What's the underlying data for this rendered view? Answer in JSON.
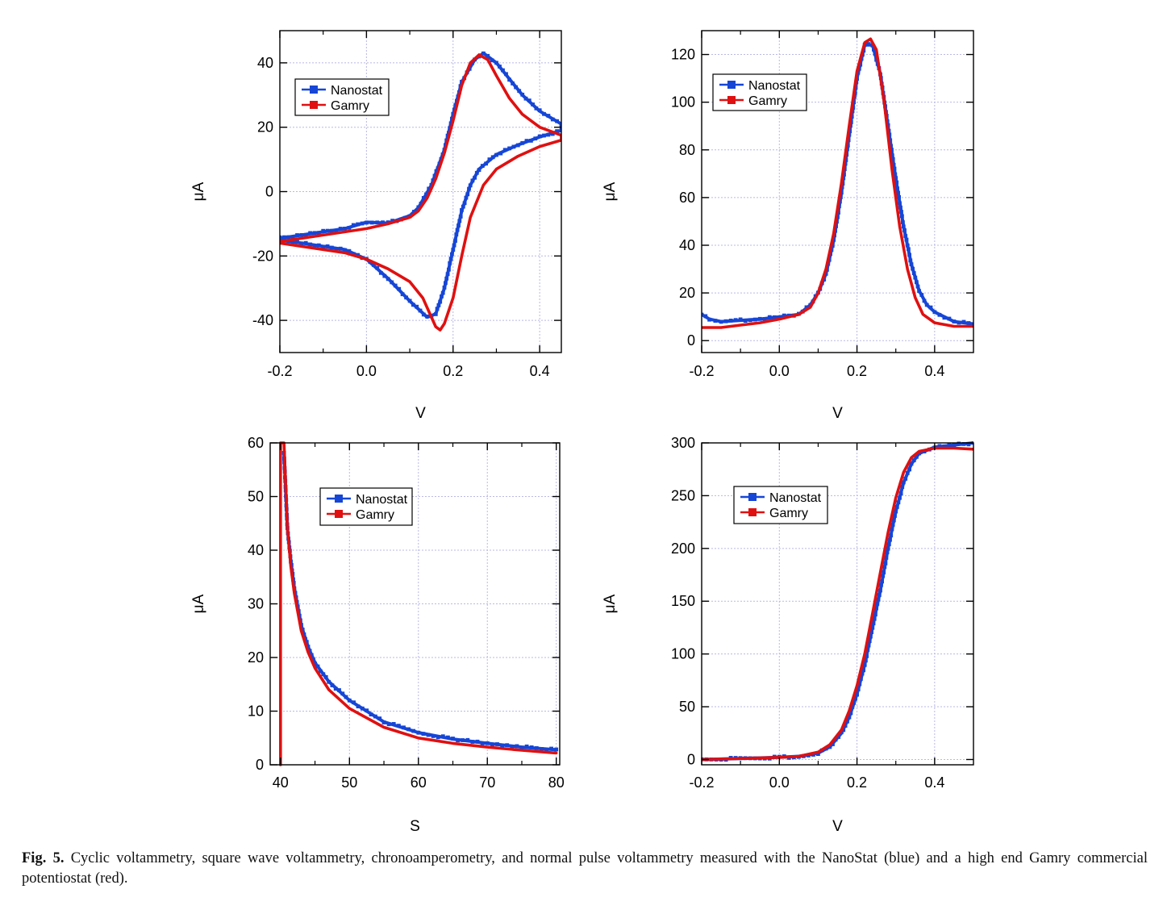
{
  "colors": {
    "nanostat": "#1646d6",
    "gamry": "#e01010",
    "grid": "#b8b8e6",
    "axis": "#000000"
  },
  "figure": {
    "label": "Fig. 5.",
    "caption": "Cyclic voltammetry, square wave voltammetry, chronoamperometry, and normal pulse voltammetry measured with the NanoStat (blue) and a high end Gamry commercial potentiostat (red)."
  },
  "chart_data": [
    {
      "id": "cv",
      "type": "line",
      "xlabel": "V",
      "ylabel": "μA",
      "xlim": [
        -0.2,
        0.45
      ],
      "ylim": [
        -50,
        50
      ],
      "xticks": [
        -0.2,
        0.0,
        0.2,
        0.4
      ],
      "xticklabels": [
        "-0.2",
        "0.0",
        "0.2",
        "0.4"
      ],
      "yticks": [
        -40,
        -20,
        0,
        20,
        40
      ],
      "yticklabels": [
        "-40",
        "-20",
        "0",
        "20",
        "40"
      ],
      "legend": [
        "Nanostat",
        "Gamry"
      ],
      "legend_position": "upper-left",
      "series": [
        {
          "name": "Nanostat",
          "x": [
            -0.2,
            -0.15,
            -0.1,
            -0.05,
            0.0,
            0.05,
            0.1,
            0.12,
            0.15,
            0.18,
            0.2,
            0.22,
            0.25,
            0.27,
            0.3,
            0.33,
            0.36,
            0.4,
            0.45,
            0.45,
            0.4,
            0.35,
            0.3,
            0.26,
            0.24,
            0.22,
            0.2,
            0.18,
            0.16,
            0.14,
            0.1,
            0.05,
            0.0,
            -0.05,
            -0.1,
            -0.15,
            -0.2
          ],
          "y": [
            -14.5,
            -13.5,
            -12.5,
            -11.5,
            -9.5,
            -9.8,
            -7.5,
            -5,
            2,
            13,
            24,
            34,
            41,
            43,
            40,
            35,
            30,
            25,
            21,
            19,
            17,
            14.5,
            11.5,
            7,
            2,
            -6,
            -18,
            -30,
            -38,
            -39,
            -34,
            -27,
            -21,
            -18,
            -17,
            -16,
            -15
          ]
        },
        {
          "name": "Gamry",
          "x": [
            -0.2,
            -0.15,
            -0.1,
            -0.05,
            0.0,
            0.05,
            0.1,
            0.12,
            0.14,
            0.16,
            0.18,
            0.2,
            0.22,
            0.24,
            0.26,
            0.28,
            0.3,
            0.33,
            0.36,
            0.4,
            0.45,
            0.45,
            0.4,
            0.35,
            0.3,
            0.27,
            0.24,
            0.22,
            0.2,
            0.18,
            0.17,
            0.16,
            0.15,
            0.13,
            0.1,
            0.05,
            0.0,
            -0.05,
            -0.1,
            -0.15,
            -0.2
          ],
          "y": [
            -15.5,
            -14.5,
            -13.5,
            -12.5,
            -11.5,
            -10,
            -8,
            -6,
            -2,
            4,
            12,
            22,
            33,
            40,
            42.5,
            41,
            36,
            29,
            24,
            20,
            17.5,
            16,
            14,
            11,
            7,
            2,
            -8,
            -20,
            -33,
            -41,
            -43,
            -42,
            -39,
            -33,
            -28,
            -24,
            -21,
            -19,
            -18,
            -17,
            -16
          ]
        }
      ]
    },
    {
      "id": "swv",
      "type": "line",
      "xlabel": "V",
      "ylabel": "μA",
      "xlim": [
        -0.2,
        0.5
      ],
      "ylim": [
        -5,
        130
      ],
      "xticks": [
        -0.2,
        0.0,
        0.2,
        0.4
      ],
      "xticklabels": [
        "-0.2",
        "0.0",
        "0.2",
        "0.4"
      ],
      "yticks": [
        0,
        20,
        40,
        60,
        80,
        100,
        120
      ],
      "yticklabels": [
        "0",
        "20",
        "40",
        "60",
        "80",
        "100",
        "120"
      ],
      "legend": [
        "Nanostat",
        "Gamry"
      ],
      "legend_position": "upper-left",
      "series": [
        {
          "name": "Nanostat",
          "x": [
            -0.2,
            -0.18,
            -0.15,
            -0.1,
            -0.05,
            0.0,
            0.05,
            0.08,
            0.1,
            0.12,
            0.14,
            0.16,
            0.18,
            0.2,
            0.22,
            0.24,
            0.26,
            0.28,
            0.3,
            0.32,
            0.34,
            0.36,
            0.38,
            0.4,
            0.45,
            0.5
          ],
          "y": [
            11,
            9,
            8,
            8.5,
            9,
            10,
            11,
            15,
            20,
            28,
            42,
            62,
            86,
            110,
            124,
            124,
            112,
            90,
            68,
            48,
            32,
            21,
            15,
            12,
            8,
            7
          ]
        },
        {
          "name": "Gamry",
          "x": [
            -0.2,
            -0.15,
            -0.1,
            -0.05,
            0.0,
            0.05,
            0.08,
            0.1,
            0.12,
            0.14,
            0.16,
            0.18,
            0.2,
            0.22,
            0.235,
            0.25,
            0.27,
            0.29,
            0.31,
            0.33,
            0.35,
            0.37,
            0.4,
            0.45,
            0.5
          ],
          "y": [
            5.5,
            5.5,
            6.5,
            7.5,
            9,
            11,
            14,
            20,
            30,
            45,
            66,
            90,
            113,
            125,
            126.5,
            122,
            100,
            72,
            48,
            30,
            18,
            11,
            7.5,
            6,
            6
          ]
        }
      ]
    },
    {
      "id": "ca",
      "type": "line",
      "xlabel": "S",
      "ylabel": "μA",
      "xlim": [
        38.5,
        80.5
      ],
      "ylim": [
        0,
        60
      ],
      "xticks": [
        40,
        50,
        60,
        70,
        80
      ],
      "xticklabels": [
        "40",
        "50",
        "60",
        "70",
        "80"
      ],
      "yticks": [
        0,
        10,
        20,
        30,
        40,
        50,
        60
      ],
      "yticklabels": [
        "0",
        "10",
        "20",
        "30",
        "40",
        "50",
        "60"
      ],
      "legend": [
        "Nanostat",
        "Gamry"
      ],
      "legend_position": "upper-center",
      "series": [
        {
          "name": "Nanostat",
          "x": [
            40.5,
            41,
            41.5,
            42,
            43,
            44,
            45,
            47,
            50,
            55,
            60,
            65,
            70,
            75,
            80
          ],
          "y": [
            58,
            44,
            38,
            33,
            26,
            22,
            19,
            15.5,
            12,
            8,
            6,
            4.8,
            4,
            3.3,
            2.8
          ]
        },
        {
          "name": "Gamry",
          "x": [
            40,
            40,
            40.5,
            41,
            41.5,
            42,
            43,
            44,
            45,
            47,
            50,
            55,
            60,
            65,
            70,
            75,
            80
          ],
          "y": [
            0,
            60,
            60,
            44,
            37,
            32,
            25,
            21,
            18,
            14,
            10.5,
            7,
            5,
            4,
            3.3,
            2.7,
            2.2
          ]
        }
      ]
    },
    {
      "id": "npv",
      "type": "line",
      "xlabel": "V",
      "ylabel": "μA",
      "xlim": [
        -0.2,
        0.5
      ],
      "ylim": [
        -5,
        300
      ],
      "xticks": [
        -0.2,
        0.0,
        0.2,
        0.4
      ],
      "xticklabels": [
        "-0.2",
        "0.0",
        "0.2",
        "0.4"
      ],
      "yticks": [
        0,
        50,
        100,
        150,
        200,
        250,
        300
      ],
      "yticklabels": [
        "0",
        "50",
        "100",
        "150",
        "200",
        "250",
        "300"
      ],
      "legend": [
        "Nanostat",
        "Gamry"
      ],
      "legend_position": "upper-left",
      "series": [
        {
          "name": "Nanostat",
          "x": [
            -0.2,
            -0.1,
            0.0,
            0.05,
            0.1,
            0.13,
            0.16,
            0.18,
            0.2,
            0.22,
            0.24,
            0.26,
            0.28,
            0.3,
            0.32,
            0.34,
            0.36,
            0.4,
            0.45,
            0.5
          ],
          "y": [
            0,
            1,
            2,
            3,
            6,
            12,
            25,
            40,
            62,
            90,
            125,
            160,
            200,
            235,
            262,
            280,
            290,
            296,
            298,
            300
          ]
        },
        {
          "name": "Gamry",
          "x": [
            -0.2,
            -0.1,
            0.0,
            0.05,
            0.1,
            0.13,
            0.16,
            0.18,
            0.2,
            0.22,
            0.24,
            0.26,
            0.28,
            0.3,
            0.32,
            0.34,
            0.36,
            0.4,
            0.45,
            0.5
          ],
          "y": [
            0,
            1,
            2,
            3,
            7,
            14,
            28,
            46,
            70,
            100,
            138,
            177,
            215,
            248,
            272,
            286,
            292,
            295,
            295,
            294
          ]
        }
      ]
    }
  ]
}
